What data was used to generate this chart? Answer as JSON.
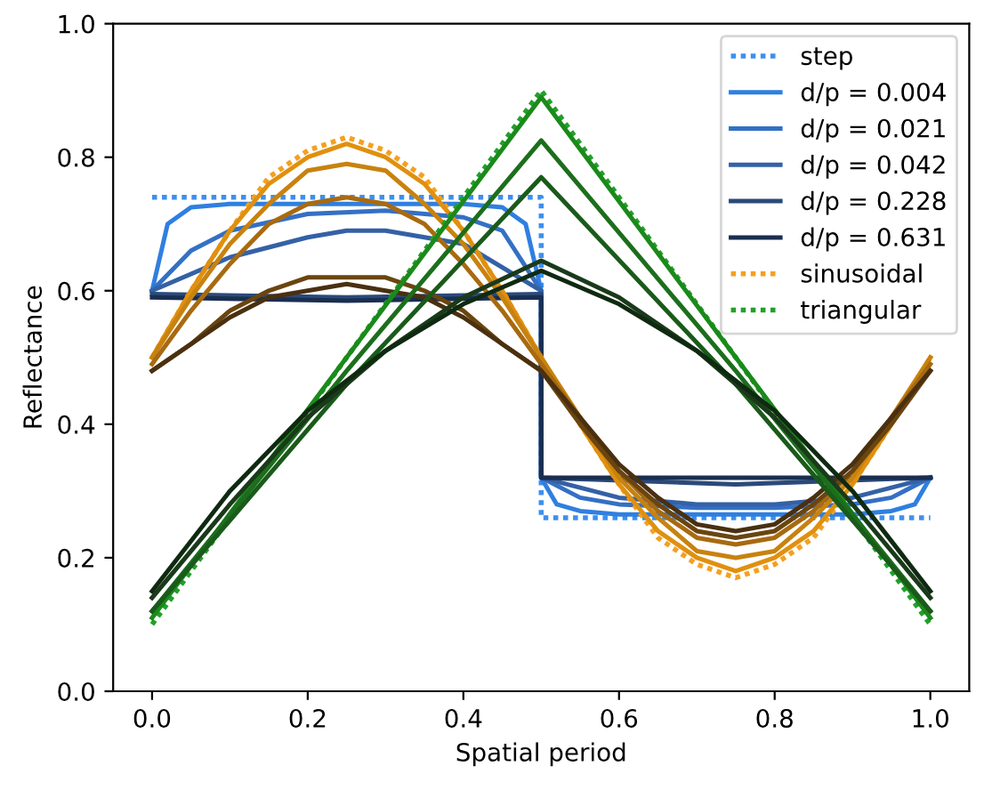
{
  "chart_data": {
    "type": "line",
    "xlabel": "Spatial period",
    "ylabel": "Reflectance",
    "xlim": [
      -0.05,
      1.05
    ],
    "ylim": [
      0,
      1
    ],
    "xticks": [
      {
        "value": 0,
        "label": "0.0"
      },
      {
        "value": 0.2,
        "label": "0.2"
      },
      {
        "value": 0.4,
        "label": "0.4"
      },
      {
        "value": 0.6,
        "label": "0.6"
      },
      {
        "value": 0.8,
        "label": "0.8"
      },
      {
        "value": 1,
        "label": "1.0"
      }
    ],
    "yticks": [
      {
        "value": 0,
        "label": "0.0"
      },
      {
        "value": 0.2,
        "label": "0.2"
      },
      {
        "value": 0.4,
        "label": "0.4"
      },
      {
        "value": 0.6,
        "label": "0.6"
      },
      {
        "value": 0.8,
        "label": "0.8"
      },
      {
        "value": 1,
        "label": "1.0"
      }
    ],
    "legend": "top right",
    "series": [
      {
        "name": "step",
        "color": "#3d8fef",
        "line_style": "dotted",
        "x": [
          0,
          0.5,
          0.5,
          1
        ],
        "values": [
          0.74,
          0.74,
          0.26,
          0.26
        ]
      },
      {
        "name": "d/p = 0.004",
        "color": "#2f7fe0",
        "line_style": "solid",
        "x": [
          0,
          0.02,
          0.05,
          0.1,
          0.4,
          0.45,
          0.48,
          0.5,
          0.5,
          0.52,
          0.55,
          0.6,
          0.9,
          0.95,
          0.98,
          1
        ],
        "values": [
          0.6,
          0.7,
          0.725,
          0.73,
          0.73,
          0.725,
          0.7,
          0.6,
          0.32,
          0.28,
          0.27,
          0.265,
          0.265,
          0.27,
          0.28,
          0.32
        ]
      },
      {
        "name": "d/p = 0.021",
        "color": "#3470c4",
        "line_style": "solid",
        "x": [
          0,
          0.05,
          0.1,
          0.2,
          0.3,
          0.4,
          0.45,
          0.5,
          0.5,
          0.55,
          0.6,
          0.7,
          0.8,
          0.9,
          0.95,
          1
        ],
        "values": [
          0.6,
          0.66,
          0.69,
          0.715,
          0.72,
          0.71,
          0.69,
          0.6,
          0.32,
          0.29,
          0.28,
          0.275,
          0.275,
          0.28,
          0.29,
          0.32
        ]
      },
      {
        "name": "d/p = 0.042",
        "color": "#3461a6",
        "line_style": "solid",
        "x": [
          0,
          0.1,
          0.2,
          0.25,
          0.3,
          0.4,
          0.5,
          0.5,
          0.6,
          0.7,
          0.75,
          0.8,
          0.9,
          1
        ],
        "values": [
          0.6,
          0.65,
          0.68,
          0.69,
          0.69,
          0.67,
          0.6,
          0.32,
          0.29,
          0.28,
          0.28,
          0.28,
          0.29,
          0.32
        ]
      },
      {
        "name": "d/p = 0.228",
        "color": "#2a4a7a",
        "line_style": "solid",
        "x": [
          0,
          0.25,
          0.5,
          0.5,
          0.75,
          1
        ],
        "values": [
          0.595,
          0.59,
          0.595,
          0.32,
          0.31,
          0.32
        ]
      },
      {
        "name": "d/p = 0.631",
        "color": "#1a2e50",
        "line_style": "solid",
        "x": [
          0,
          0.25,
          0.5,
          0.5,
          0.75,
          1
        ],
        "values": [
          0.59,
          0.585,
          0.59,
          0.32,
          0.32,
          0.32
        ]
      },
      {
        "name": "sinusoidal",
        "color": "#f5a020",
        "line_style": "dotted",
        "x": [
          0,
          0.05,
          0.1,
          0.15,
          0.2,
          0.25,
          0.3,
          0.35,
          0.4,
          0.45,
          0.5,
          0.55,
          0.6,
          0.65,
          0.7,
          0.75,
          0.8,
          0.85,
          0.9,
          0.95,
          1
        ],
        "values": [
          0.5,
          0.6,
          0.69,
          0.77,
          0.81,
          0.83,
          0.81,
          0.77,
          0.69,
          0.6,
          0.5,
          0.4,
          0.31,
          0.23,
          0.19,
          0.17,
          0.19,
          0.23,
          0.31,
          0.4,
          0.5
        ]
      },
      {
        "color": "#e0900f",
        "line_style": "solid",
        "x": [
          0,
          0.05,
          0.1,
          0.15,
          0.2,
          0.25,
          0.3,
          0.35,
          0.4,
          0.45,
          0.5,
          0.55,
          0.6,
          0.65,
          0.7,
          0.75,
          0.8,
          0.85,
          0.9,
          0.95,
          1
        ],
        "values": [
          0.5,
          0.6,
          0.69,
          0.76,
          0.8,
          0.82,
          0.8,
          0.76,
          0.69,
          0.6,
          0.5,
          0.4,
          0.31,
          0.24,
          0.2,
          0.18,
          0.2,
          0.24,
          0.31,
          0.4,
          0.5
        ]
      },
      {
        "color": "#c8820f",
        "line_style": "solid",
        "x": [
          0,
          0.05,
          0.1,
          0.15,
          0.2,
          0.25,
          0.3,
          0.35,
          0.4,
          0.45,
          0.5,
          0.55,
          0.6,
          0.65,
          0.7,
          0.75,
          0.8,
          0.85,
          0.9,
          0.95,
          1
        ],
        "values": [
          0.5,
          0.59,
          0.67,
          0.73,
          0.78,
          0.79,
          0.78,
          0.73,
          0.67,
          0.59,
          0.5,
          0.41,
          0.32,
          0.26,
          0.21,
          0.2,
          0.21,
          0.26,
          0.32,
          0.41,
          0.5
        ]
      },
      {
        "color": "#a86a10",
        "line_style": "solid",
        "x": [
          0,
          0.05,
          0.1,
          0.15,
          0.2,
          0.25,
          0.3,
          0.35,
          0.4,
          0.45,
          0.5,
          0.55,
          0.6,
          0.65,
          0.7,
          0.75,
          0.8,
          0.85,
          0.9,
          0.95,
          1
        ],
        "values": [
          0.49,
          0.57,
          0.64,
          0.7,
          0.73,
          0.74,
          0.73,
          0.7,
          0.64,
          0.57,
          0.49,
          0.41,
          0.33,
          0.27,
          0.23,
          0.22,
          0.23,
          0.27,
          0.33,
          0.41,
          0.49
        ]
      },
      {
        "color": "#6a4510",
        "line_style": "solid",
        "x": [
          0,
          0.05,
          0.1,
          0.15,
          0.2,
          0.25,
          0.3,
          0.35,
          0.4,
          0.45,
          0.5,
          0.55,
          0.6,
          0.65,
          0.7,
          0.75,
          0.8,
          0.85,
          0.9,
          0.95,
          1
        ],
        "values": [
          0.48,
          0.52,
          0.57,
          0.6,
          0.62,
          0.62,
          0.62,
          0.6,
          0.57,
          0.52,
          0.48,
          0.4,
          0.33,
          0.28,
          0.24,
          0.23,
          0.24,
          0.28,
          0.33,
          0.4,
          0.48
        ]
      },
      {
        "color": "#4a3010",
        "line_style": "solid",
        "x": [
          0,
          0.05,
          0.1,
          0.15,
          0.2,
          0.25,
          0.3,
          0.35,
          0.4,
          0.45,
          0.5,
          0.55,
          0.6,
          0.65,
          0.7,
          0.75,
          0.8,
          0.85,
          0.9,
          0.95,
          1
        ],
        "values": [
          0.48,
          0.52,
          0.56,
          0.59,
          0.6,
          0.61,
          0.6,
          0.59,
          0.56,
          0.52,
          0.48,
          0.41,
          0.34,
          0.29,
          0.25,
          0.24,
          0.25,
          0.29,
          0.34,
          0.41,
          0.48
        ]
      },
      {
        "name": "triangular",
        "color": "#22a02a",
        "line_style": "dotted",
        "x": [
          0,
          0.5,
          1
        ],
        "values": [
          0.1,
          0.9,
          0.1
        ]
      },
      {
        "color": "#1a8a1a",
        "line_style": "solid",
        "x": [
          0,
          0.25,
          0.5,
          0.75,
          1
        ],
        "values": [
          0.11,
          0.5,
          0.89,
          0.5,
          0.11
        ]
      },
      {
        "color": "#1c6e1c",
        "line_style": "solid",
        "x": [
          0,
          0.25,
          0.5,
          0.75,
          1
        ],
        "values": [
          0.12,
          0.48,
          0.825,
          0.48,
          0.12
        ]
      },
      {
        "color": "#1a5a1a",
        "line_style": "solid",
        "x": [
          0,
          0.25,
          0.5,
          0.75,
          1
        ],
        "values": [
          0.12,
          0.46,
          0.77,
          0.46,
          0.12
        ]
      },
      {
        "color": "#1a3a1a",
        "line_style": "solid",
        "x": [
          0,
          0.1,
          0.2,
          0.3,
          0.4,
          0.5,
          0.6,
          0.7,
          0.8,
          0.9,
          1
        ],
        "values": [
          0.14,
          0.28,
          0.41,
          0.51,
          0.59,
          0.645,
          0.59,
          0.51,
          0.41,
          0.28,
          0.14
        ]
      },
      {
        "color": "#0f2a10",
        "line_style": "solid",
        "x": [
          0,
          0.1,
          0.2,
          0.3,
          0.4,
          0.5,
          0.6,
          0.7,
          0.8,
          0.9,
          1
        ],
        "values": [
          0.15,
          0.3,
          0.42,
          0.51,
          0.58,
          0.63,
          0.58,
          0.51,
          0.42,
          0.3,
          0.15
        ]
      }
    ]
  }
}
